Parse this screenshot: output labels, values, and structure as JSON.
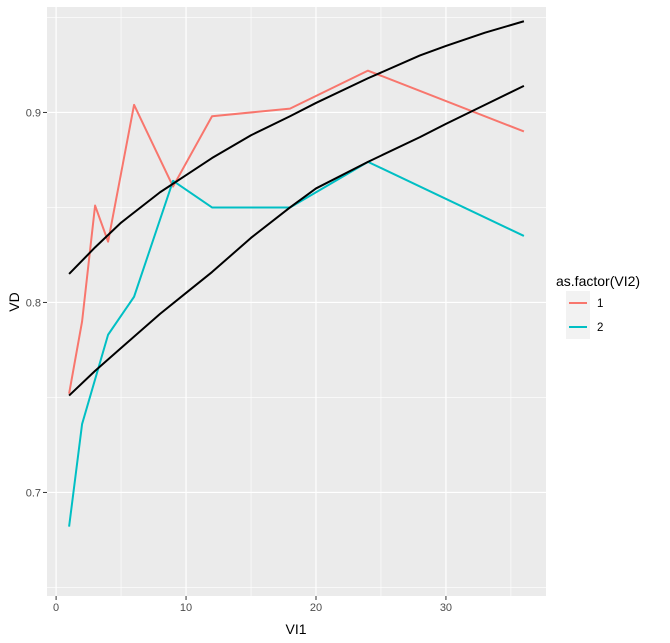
{
  "chart_data": {
    "type": "line",
    "title": "",
    "xlabel": "VI1",
    "ylabel": "VD",
    "xlim": [
      -0.7,
      37.7
    ],
    "ylim": [
      0.6455,
      0.9555
    ],
    "x_ticks": [
      0,
      10,
      20,
      30
    ],
    "y_ticks": [
      0.7,
      0.8,
      0.9
    ],
    "x_tick_labels": [
      "0",
      "10",
      "20",
      "30"
    ],
    "y_tick_labels": [
      "0.7",
      "0.8",
      "0.9"
    ],
    "grid": true,
    "legend": {
      "title": "as.factor(VI2)",
      "position": "right",
      "entries": [
        "1",
        "2"
      ]
    },
    "series": [
      {
        "name": "1",
        "color": "#F8766D",
        "x": [
          1,
          2,
          3,
          4,
          6,
          9,
          12,
          18,
          24,
          36
        ],
        "values": [
          0.752,
          0.79,
          0.851,
          0.832,
          0.904,
          0.861,
          0.898,
          0.902,
          0.922,
          0.89
        ]
      },
      {
        "name": "2",
        "color": "#00BFC4",
        "x": [
          1,
          2,
          4,
          6,
          9,
          12,
          18,
          24,
          36
        ],
        "values": [
          0.682,
          0.736,
          0.783,
          0.803,
          0.864,
          0.85,
          0.85,
          0.874,
          0.835
        ]
      },
      {
        "name": "fit-1",
        "color": "#000000",
        "x": [
          1,
          3,
          5,
          8,
          10,
          12,
          15,
          18,
          20,
          24,
          28,
          30,
          33,
          36
        ],
        "values": [
          0.815,
          0.829,
          0.842,
          0.858,
          0.867,
          0.876,
          0.888,
          0.898,
          0.905,
          0.918,
          0.93,
          0.935,
          0.942,
          0.948
        ]
      },
      {
        "name": "fit-2",
        "color": "#000000",
        "x": [
          1,
          3,
          5,
          8,
          10,
          12,
          15,
          18,
          20,
          24,
          28,
          30,
          33,
          36
        ],
        "values": [
          0.751,
          0.764,
          0.776,
          0.794,
          0.805,
          0.816,
          0.834,
          0.85,
          0.86,
          0.874,
          0.887,
          0.894,
          0.904,
          0.914
        ]
      }
    ]
  }
}
